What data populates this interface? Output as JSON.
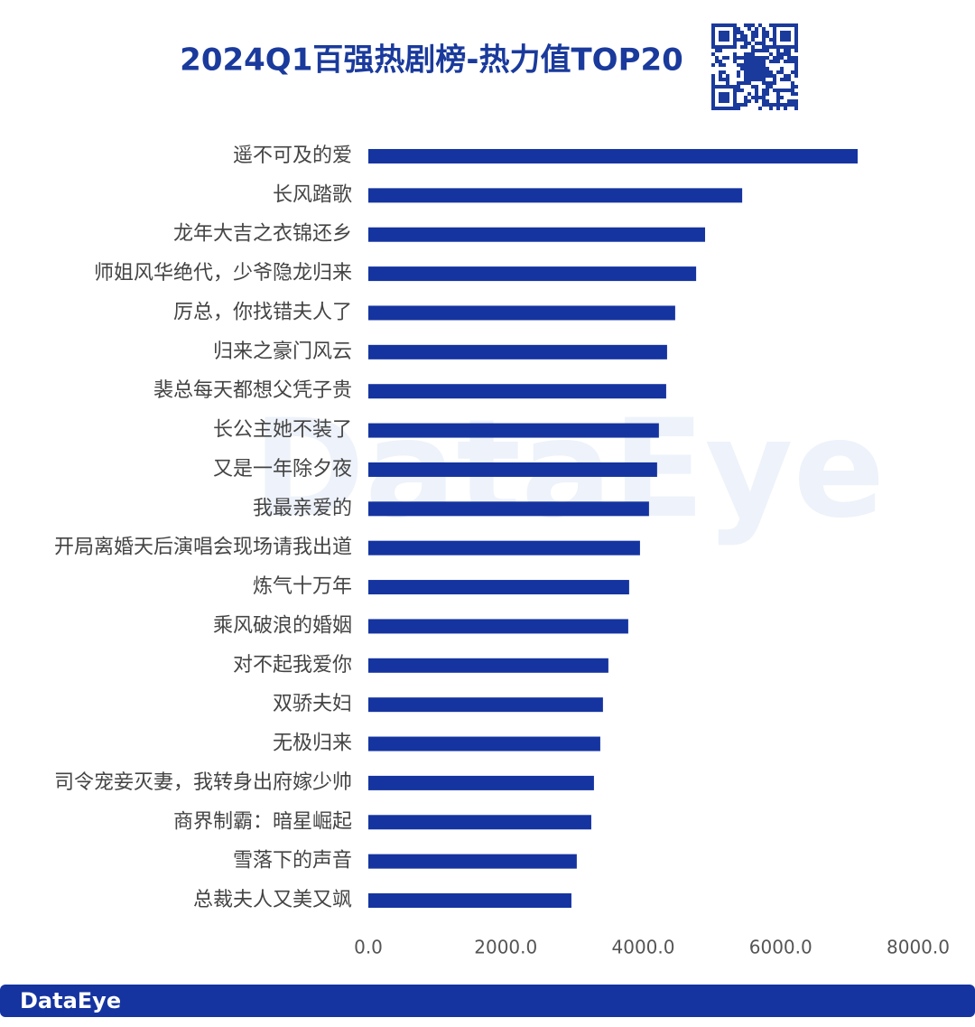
{
  "chart_data": {
    "type": "barh",
    "title": "2024Q1百强热剧榜-热力值TOP20",
    "categories": [
      "遥不可及的爱",
      "长风踏歌",
      "龙年大吉之衣锦还乡",
      "师姐风华绝代，少爷隐龙归来",
      "厉总，你找错夫人了",
      "归来之豪门风云",
      "裴总每天都想父凭子贵",
      "长公主她不装了",
      "又是一年除夕夜",
      "我最亲爱的",
      "开局离婚天后演唱会现场请我出道",
      "炼气十万年",
      "乘风破浪的婚姻",
      "对不起我爱你",
      "双骄夫妇",
      "无极归来",
      "司令宠妾灭妻，我转身出府嫁少帅",
      "商界制霸：暗星崛起",
      "雪落下的声音",
      "总裁夫人又美又飒"
    ],
    "values": [
      7120,
      5440,
      4900,
      4770,
      4465,
      4347,
      4334,
      4228,
      4202,
      4084,
      3953,
      3795,
      3782,
      3493,
      3414,
      3375,
      3283,
      3244,
      3033,
      2955
    ],
    "color": "#1534a0",
    "xlim": [
      0,
      8000
    ],
    "xticks": [
      {
        "value": 0,
        "label": "0.0"
      },
      {
        "value": 2000,
        "label": "2000.0"
      },
      {
        "value": 4000,
        "label": "4000.0"
      },
      {
        "value": 6000,
        "label": "6000.0"
      },
      {
        "value": 8000,
        "label": "8000.0"
      }
    ],
    "grid": false
  },
  "watermark": "DataEye",
  "footer": "DataEye"
}
